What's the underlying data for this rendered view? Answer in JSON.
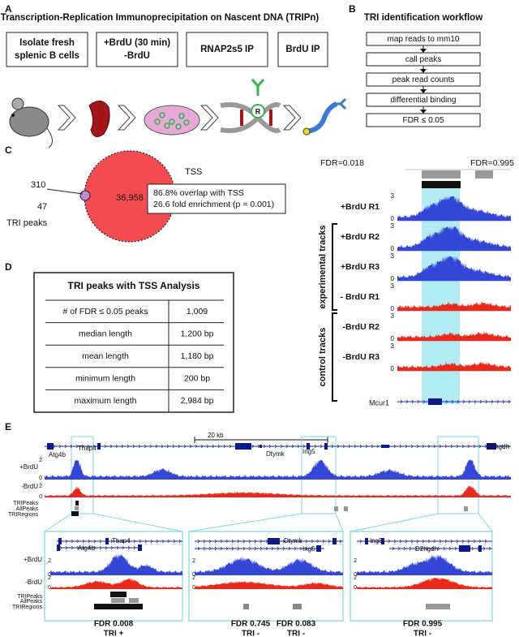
{
  "panel_a": {
    "letter": "A",
    "title": "Transcription-Replication Immunoprecipitation on Nascent DNA (TRIPn)",
    "steps": [
      {
        "lines": [
          "Isolate fresh",
          "splenic B cells"
        ]
      },
      {
        "lines": [
          "+BrdU (30 min)",
          "-BrdU"
        ]
      },
      {
        "lines": [
          "RNAP2s5 IP"
        ]
      },
      {
        "lines": [
          "BrdU IP"
        ]
      }
    ],
    "icon_label": "R"
  },
  "panel_b": {
    "letter": "B",
    "title": "TRI identification workflow",
    "steps": [
      "map reads to mm10",
      "call peaks",
      "peak read counts",
      "differential binding",
      "FDR ≤ 0.05"
    ]
  },
  "panel_c": {
    "letter": "C",
    "overlap_count": "310",
    "tri_only_count": "47",
    "tss_only_count": "36,958",
    "tss_label": "TSS",
    "tri_label": "TRI peaks",
    "stats": [
      "86.8% overlap with TSS",
      "26.6 fold enrichment (p = 0.001)"
    ]
  },
  "panel_d": {
    "letter": "D",
    "table": {
      "title": "TRI peaks with TSS Analysis",
      "rows": [
        [
          "# of FDR ≤ 0.05 peaks",
          "1,009"
        ],
        [
          "median length",
          "1,200 bp"
        ],
        [
          "mean length",
          "1,180 bp"
        ],
        [
          "minimum length",
          "200 bp"
        ],
        [
          "maximum length",
          "2,984 bp"
        ]
      ]
    }
  },
  "browser_tracks": {
    "fdr_labels": [
      "FDR=0.018",
      "FDR=0.995"
    ],
    "groups": [
      "experimental tracks",
      "control tracks"
    ],
    "tracks": [
      {
        "label": "+BrdU R1",
        "max": "3",
        "min": "0"
      },
      {
        "label": "+BrdU R2",
        "max": "3",
        "min": "0"
      },
      {
        "label": "+BrdU R3",
        "max": "3",
        "min": "0"
      },
      {
        "label": "- BrdU R1",
        "max": "3",
        "min": "0"
      },
      {
        "label": "-BrdU R2",
        "max": "3",
        "min": "0"
      },
      {
        "label": "-BrdU R3",
        "max": "3",
        "min": "0"
      }
    ],
    "gene": "Mcur1"
  },
  "panel_e": {
    "letter": "E",
    "scale": "20 kb",
    "genes": [
      "Thap4",
      "Atg4b",
      "Dtymk",
      "Ing5",
      "D2hgdh"
    ],
    "track_labels": [
      "+BrdU",
      "-BrdU",
      "TRIPeaks",
      "AllPeaks",
      "TRIRegions"
    ],
    "axes": [
      {
        "max": "2",
        "min": "0"
      },
      {
        "max": "2",
        "min": "0"
      }
    ],
    "zooms": [
      {
        "genes": [
          "Thap4",
          "Atg4b"
        ],
        "track_labels": [
          "+BrdU",
          "-BrdU",
          "TRIPeaks",
          "AllPeaks",
          "TRIRegions"
        ],
        "axes": [
          {
            "max": "2",
            "min": "0"
          },
          {
            "max": "2",
            "min": "0"
          }
        ]
      },
      {
        "genes": [
          "Dtymk",
          "Ing5"
        ],
        "axes": [
          {
            "max": "2",
            "min": "0"
          },
          {
            "max": "2",
            "min": "0"
          }
        ]
      },
      {
        "genes": [
          "Ing5",
          "D2hgdh"
        ],
        "axes": [
          {
            "max": "2",
            "min": "0"
          },
          {
            "max": "2",
            "min": "0"
          }
        ]
      }
    ],
    "results": [
      {
        "fdr": "FDR 0.008",
        "call": "TRI +"
      },
      {
        "fdr": "FDR 0.745",
        "call": "TRI -"
      },
      {
        "fdr": "FDR 0.083",
        "call": "TRI -"
      },
      {
        "fdr": "FDR 0.995",
        "call": "TRI -"
      }
    ]
  }
}
